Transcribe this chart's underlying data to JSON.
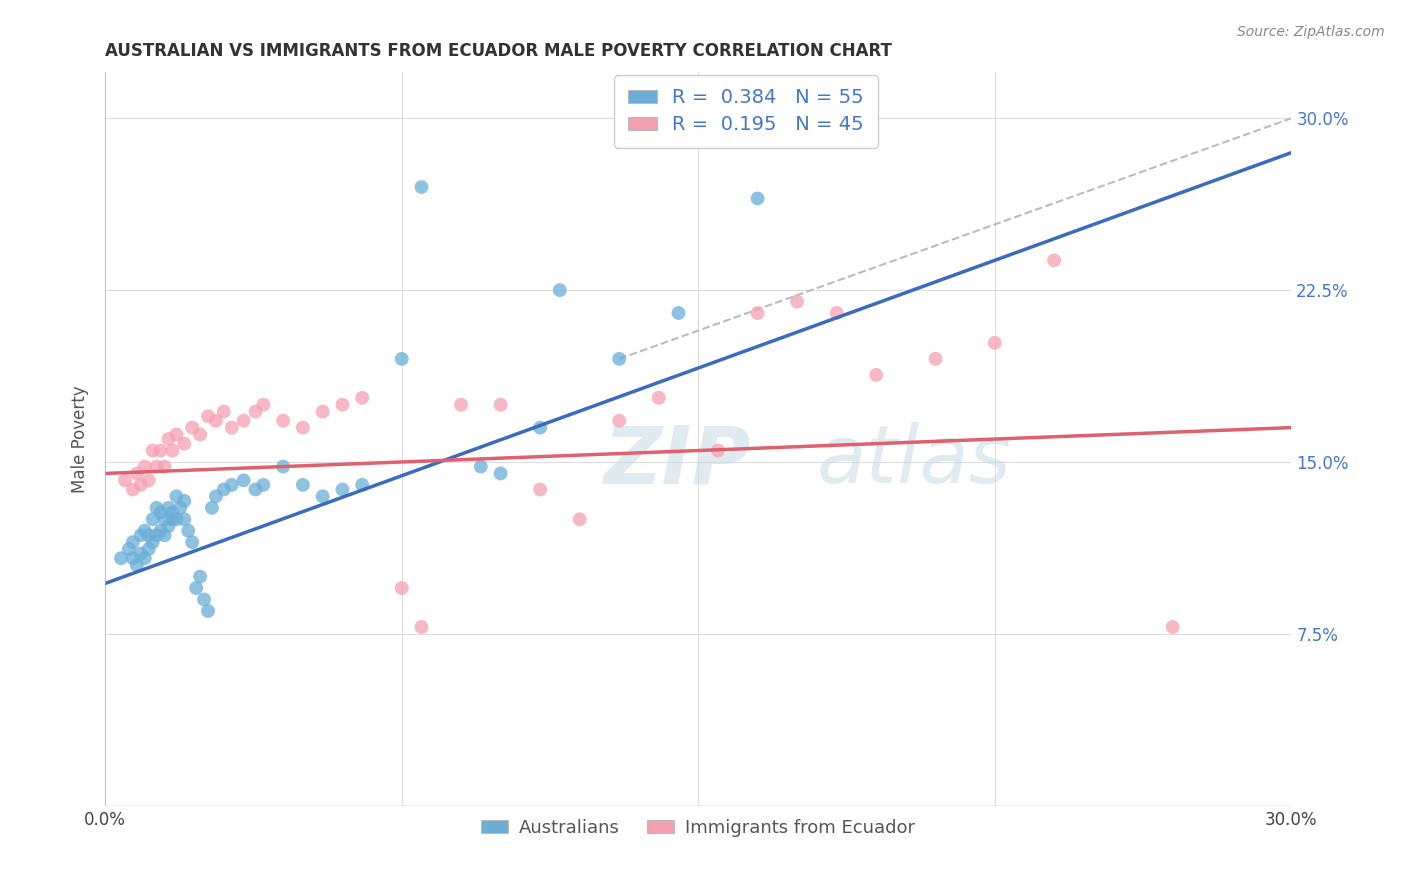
{
  "title": "AUSTRALIAN VS IMMIGRANTS FROM ECUADOR MALE POVERTY CORRELATION CHART",
  "source": "Source: ZipAtlas.com",
  "ylabel": "Male Poverty",
  "ytick_labels": [
    "7.5%",
    "15.0%",
    "22.5%",
    "30.0%"
  ],
  "ytick_values": [
    0.075,
    0.15,
    0.225,
    0.3
  ],
  "xlim": [
    0.0,
    0.3
  ],
  "ylim": [
    0.0,
    0.32
  ],
  "legend": {
    "blue_r": "0.384",
    "blue_n": "55",
    "pink_r": "0.195",
    "pink_n": "45"
  },
  "blue_color": "#6aaed6",
  "pink_color": "#f4a0b0",
  "trendline_blue_color": "#3a6bbf",
  "trendline_pink_color": "#e06070",
  "diagonal_color": "#bbbbbb",
  "blue_trendline": [
    [
      0.0,
      0.097
    ],
    [
      0.3,
      0.285
    ]
  ],
  "pink_trendline": [
    [
      0.0,
      0.145
    ],
    [
      0.3,
      0.165
    ]
  ],
  "diagonal_line": [
    [
      0.13,
      0.195
    ],
    [
      0.3,
      0.3
    ]
  ],
  "blue_scatter_x": [
    0.004,
    0.006,
    0.007,
    0.007,
    0.008,
    0.009,
    0.009,
    0.01,
    0.01,
    0.011,
    0.011,
    0.012,
    0.012,
    0.013,
    0.013,
    0.014,
    0.014,
    0.015,
    0.015,
    0.016,
    0.016,
    0.017,
    0.017,
    0.018,
    0.018,
    0.019,
    0.02,
    0.02,
    0.021,
    0.022,
    0.023,
    0.024,
    0.025,
    0.026,
    0.027,
    0.028,
    0.03,
    0.032,
    0.035,
    0.038,
    0.04,
    0.045,
    0.05,
    0.055,
    0.06,
    0.065,
    0.075,
    0.08,
    0.095,
    0.1,
    0.11,
    0.115,
    0.13,
    0.145,
    0.165
  ],
  "blue_scatter_y": [
    0.108,
    0.112,
    0.108,
    0.115,
    0.105,
    0.11,
    0.118,
    0.108,
    0.12,
    0.112,
    0.118,
    0.115,
    0.125,
    0.118,
    0.13,
    0.12,
    0.128,
    0.118,
    0.125,
    0.122,
    0.13,
    0.125,
    0.128,
    0.125,
    0.135,
    0.13,
    0.125,
    0.133,
    0.12,
    0.115,
    0.095,
    0.1,
    0.09,
    0.085,
    0.13,
    0.135,
    0.138,
    0.14,
    0.142,
    0.138,
    0.14,
    0.148,
    0.14,
    0.135,
    0.138,
    0.14,
    0.195,
    0.27,
    0.148,
    0.145,
    0.165,
    0.225,
    0.195,
    0.215,
    0.265
  ],
  "pink_scatter_x": [
    0.005,
    0.007,
    0.008,
    0.009,
    0.01,
    0.011,
    0.012,
    0.013,
    0.014,
    0.015,
    0.016,
    0.017,
    0.018,
    0.02,
    0.022,
    0.024,
    0.026,
    0.028,
    0.03,
    0.032,
    0.035,
    0.038,
    0.04,
    0.045,
    0.05,
    0.055,
    0.06,
    0.065,
    0.075,
    0.08,
    0.09,
    0.1,
    0.11,
    0.12,
    0.13,
    0.14,
    0.155,
    0.165,
    0.175,
    0.185,
    0.195,
    0.21,
    0.225,
    0.24,
    0.27
  ],
  "pink_scatter_y": [
    0.142,
    0.138,
    0.145,
    0.14,
    0.148,
    0.142,
    0.155,
    0.148,
    0.155,
    0.148,
    0.16,
    0.155,
    0.162,
    0.158,
    0.165,
    0.162,
    0.17,
    0.168,
    0.172,
    0.165,
    0.168,
    0.172,
    0.175,
    0.168,
    0.165,
    0.172,
    0.175,
    0.178,
    0.095,
    0.078,
    0.175,
    0.175,
    0.138,
    0.125,
    0.168,
    0.178,
    0.155,
    0.215,
    0.22,
    0.215,
    0.188,
    0.195,
    0.202,
    0.238,
    0.078
  ]
}
